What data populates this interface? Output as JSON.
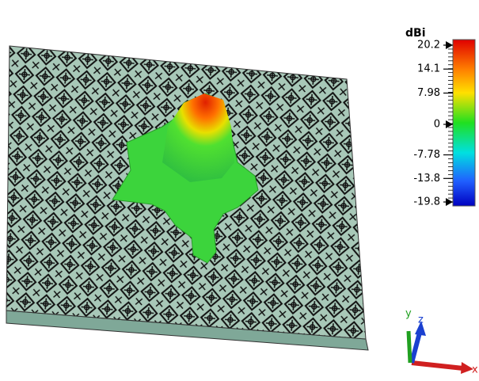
{
  "colorbar": {
    "title": "dBi",
    "ticks": [
      20.2,
      14.1,
      7.98,
      0,
      -7.78,
      -13.8,
      -19.8
    ],
    "range": [
      -19.8,
      20.2
    ]
  },
  "axes": {
    "labels": [
      "y",
      "z",
      "x"
    ]
  }
}
